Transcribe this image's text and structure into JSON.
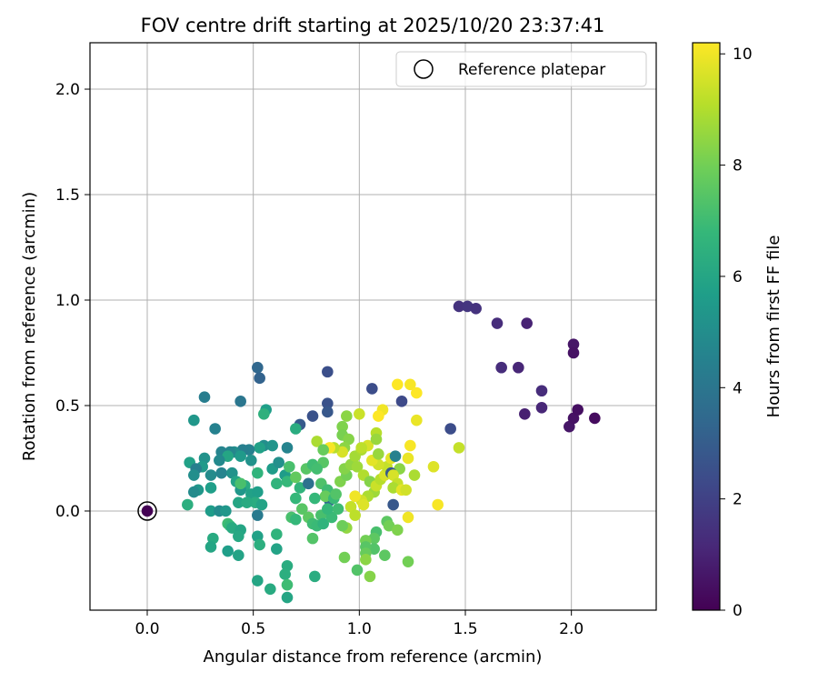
{
  "chart_data": {
    "type": "scatter",
    "title": "FOV centre drift starting at 2025/10/20 23:37:41",
    "xlabel": "Angular distance from reference (arcmin)",
    "ylabel": "Rotation from reference (arcmin)",
    "xlim": [
      -0.27,
      2.4
    ],
    "ylim": [
      -0.47,
      2.22
    ],
    "xticks": [
      0.0,
      0.5,
      1.0,
      1.5,
      2.0
    ],
    "xtick_labels": [
      "0.0",
      "0.5",
      "1.0",
      "1.5",
      "2.0"
    ],
    "yticks": [
      0.0,
      0.5,
      1.0,
      1.5,
      2.0
    ],
    "ytick_labels": [
      "0.0",
      "0.5",
      "1.0",
      "1.5",
      "2.0"
    ],
    "grid": true,
    "legend": {
      "position": "top-right",
      "label": "Reference platepar"
    },
    "reference_point": {
      "x": 0.0,
      "y": 0.0
    },
    "colorbar": {
      "label": "Hours from first FF file",
      "min": 0,
      "max": 10.2,
      "ticks": [
        0,
        2,
        4,
        6,
        8,
        10
      ],
      "tick_labels": [
        "0",
        "2",
        "4",
        "6",
        "8",
        "10"
      ],
      "colormap": [
        "#440154",
        "#482878",
        "#3e4989",
        "#31688e",
        "#26828e",
        "#1f9e89",
        "#35b779",
        "#6ece58",
        "#b5de2b",
        "#fde725"
      ]
    },
    "points": [
      [
        0.0,
        0.0,
        0.0
      ],
      [
        1.47,
        0.97,
        1.5
      ],
      [
        1.51,
        0.97,
        1.6
      ],
      [
        1.55,
        0.96,
        1.5
      ],
      [
        1.65,
        0.89,
        1.3
      ],
      [
        1.79,
        0.89,
        1.0
      ],
      [
        1.67,
        0.68,
        1.3
      ],
      [
        1.75,
        0.68,
        1.1
      ],
      [
        2.01,
        0.79,
        0.6
      ],
      [
        2.01,
        0.75,
        0.5
      ],
      [
        1.86,
        0.57,
        1.3
      ],
      [
        1.86,
        0.49,
        1.1
      ],
      [
        1.78,
        0.46,
        0.9
      ],
      [
        1.99,
        0.4,
        0.6
      ],
      [
        2.01,
        0.44,
        0.5
      ],
      [
        2.03,
        0.48,
        0.4
      ],
      [
        2.11,
        0.44,
        0.3
      ],
      [
        1.43,
        0.39,
        2.4
      ],
      [
        1.06,
        0.58,
        2.4
      ],
      [
        1.2,
        0.52,
        2.3
      ],
      [
        0.85,
        0.66,
        2.5
      ],
      [
        0.85,
        0.51,
        2.6
      ],
      [
        0.85,
        0.47,
        2.8
      ],
      [
        0.78,
        0.45,
        2.6
      ],
      [
        0.72,
        0.41,
        2.9
      ],
      [
        0.52,
        0.68,
        3.4
      ],
      [
        0.53,
        0.63,
        3.2
      ],
      [
        0.44,
        0.52,
        4.0
      ],
      [
        0.27,
        0.54,
        4.3
      ],
      [
        0.32,
        0.39,
        4.5
      ],
      [
        0.22,
        0.43,
        5.4
      ],
      [
        0.56,
        0.48,
        5.7
      ],
      [
        0.55,
        0.46,
        6.5
      ],
      [
        0.55,
        0.31,
        5.0
      ],
      [
        0.59,
        0.31,
        5.3
      ],
      [
        0.53,
        0.3,
        5.8
      ],
      [
        0.66,
        0.3,
        4.6
      ],
      [
        0.48,
        0.29,
        4.5
      ],
      [
        0.45,
        0.29,
        4.4
      ],
      [
        0.41,
        0.28,
        5.0
      ],
      [
        0.39,
        0.28,
        4.7
      ],
      [
        0.35,
        0.28,
        4.6
      ],
      [
        0.38,
        0.26,
        6.0
      ],
      [
        0.44,
        0.26,
        5.5
      ],
      [
        0.49,
        0.24,
        5.2
      ],
      [
        0.34,
        0.24,
        4.8
      ],
      [
        0.27,
        0.25,
        5.2
      ],
      [
        0.2,
        0.23,
        5.8
      ],
      [
        0.26,
        0.21,
        5.5
      ],
      [
        0.23,
        0.2,
        4.4
      ],
      [
        0.22,
        0.17,
        5.0
      ],
      [
        0.3,
        0.17,
        4.9
      ],
      [
        0.35,
        0.18,
        4.6
      ],
      [
        0.4,
        0.18,
        5.2
      ],
      [
        0.42,
        0.14,
        5.9
      ],
      [
        0.46,
        0.12,
        6.2
      ],
      [
        0.44,
        0.1,
        5.4
      ],
      [
        0.49,
        0.08,
        5.8
      ],
      [
        0.52,
        0.18,
        6.6
      ],
      [
        0.59,
        0.2,
        5.6
      ],
      [
        0.62,
        0.23,
        5.1
      ],
      [
        0.65,
        0.17,
        5.6
      ],
      [
        0.61,
        0.13,
        6.6
      ],
      [
        0.66,
        0.14,
        6.8
      ],
      [
        0.52,
        0.09,
        5.7
      ],
      [
        0.51,
        0.04,
        6.3
      ],
      [
        0.54,
        0.03,
        5.9
      ],
      [
        0.43,
        0.04,
        6.0
      ],
      [
        0.47,
        0.04,
        6.2
      ],
      [
        0.44,
        0.13,
        7.2
      ],
      [
        0.3,
        0.11,
        5.7
      ],
      [
        0.24,
        0.1,
        5.4
      ],
      [
        0.22,
        0.09,
        4.9
      ],
      [
        0.19,
        0.03,
        6.4
      ],
      [
        0.3,
        0.0,
        5.6
      ],
      [
        0.34,
        0.0,
        4.9
      ],
      [
        0.37,
        0.0,
        5.4
      ],
      [
        0.52,
        -0.02,
        4.2
      ],
      [
        0.38,
        -0.06,
        7.0
      ],
      [
        0.39,
        -0.07,
        6.8
      ],
      [
        0.4,
        -0.08,
        6.2
      ],
      [
        0.44,
        -0.09,
        6.0
      ],
      [
        0.43,
        -0.12,
        6.1
      ],
      [
        0.31,
        -0.13,
        6.2
      ],
      [
        0.3,
        -0.17,
        6.0
      ],
      [
        0.38,
        -0.19,
        5.7
      ],
      [
        0.43,
        -0.21,
        5.9
      ],
      [
        0.52,
        -0.12,
        5.8
      ],
      [
        0.53,
        -0.16,
        6.4
      ],
      [
        0.61,
        -0.11,
        6.6
      ],
      [
        0.61,
        -0.18,
        5.9
      ],
      [
        0.66,
        -0.26,
        6.3
      ],
      [
        0.65,
        -0.3,
        6.4
      ],
      [
        0.66,
        -0.35,
        7.0
      ],
      [
        0.52,
        -0.33,
        6.0
      ],
      [
        0.58,
        -0.37,
        6.2
      ],
      [
        0.66,
        -0.41,
        6.0
      ],
      [
        0.79,
        -0.31,
        6.3
      ],
      [
        0.68,
        -0.03,
        7.2
      ],
      [
        0.7,
        -0.04,
        6.8
      ],
      [
        0.73,
        0.01,
        7.5
      ],
      [
        0.7,
        0.06,
        6.8
      ],
      [
        0.72,
        0.11,
        6.6
      ],
      [
        0.67,
        0.21,
        7.2
      ],
      [
        0.7,
        0.39,
        6.3
      ],
      [
        0.75,
        0.2,
        7.5
      ],
      [
        0.78,
        0.22,
        7.0
      ],
      [
        0.76,
        0.13,
        3.8
      ],
      [
        0.82,
        0.13,
        7.3
      ],
      [
        0.85,
        0.1,
        7.0
      ],
      [
        0.86,
        0.05,
        3.5
      ],
      [
        0.84,
        0.07,
        7.8
      ],
      [
        0.79,
        0.06,
        6.8
      ],
      [
        0.82,
        -0.02,
        7.2
      ],
      [
        0.76,
        -0.03,
        7.6
      ],
      [
        0.78,
        -0.06,
        7.0
      ],
      [
        0.8,
        -0.07,
        6.9
      ],
      [
        0.83,
        -0.06,
        6.6
      ],
      [
        0.78,
        -0.13,
        7.4
      ],
      [
        0.87,
        -0.03,
        6.9
      ],
      [
        0.85,
        0.01,
        6.8
      ],
      [
        0.88,
        0.06,
        6.9
      ],
      [
        0.89,
        0.08,
        7.4
      ],
      [
        0.91,
        0.14,
        8.2
      ],
      [
        0.94,
        0.17,
        8.0
      ],
      [
        0.93,
        0.2,
        8.3
      ],
      [
        0.96,
        0.22,
        8.5
      ],
      [
        0.98,
        0.26,
        8.8
      ],
      [
        1.01,
        0.29,
        8.9
      ],
      [
        1.04,
        0.31,
        9.6
      ],
      [
        1.01,
        0.3,
        9.2
      ],
      [
        0.99,
        0.21,
        8.7
      ],
      [
        1.02,
        0.17,
        9.0
      ],
      [
        1.05,
        0.14,
        8.3
      ],
      [
        1.07,
        0.09,
        8.7
      ],
      [
        1.04,
        0.07,
        8.9
      ],
      [
        1.01,
        0.05,
        9.5
      ],
      [
        0.98,
        0.07,
        10.0
      ],
      [
        0.96,
        0.02,
        9.3
      ],
      [
        1.02,
        0.03,
        9.7
      ],
      [
        1.08,
        0.12,
        9.4
      ],
      [
        1.1,
        0.15,
        9.1
      ],
      [
        1.12,
        0.17,
        9.6
      ],
      [
        1.13,
        0.21,
        9.3
      ],
      [
        1.09,
        0.22,
        9.5
      ],
      [
        1.06,
        0.24,
        9.8
      ],
      [
        1.09,
        0.27,
        8.6
      ],
      [
        1.15,
        0.25,
        9.8
      ],
      [
        1.17,
        0.26,
        4.5
      ],
      [
        1.19,
        0.2,
        8.4
      ],
      [
        1.23,
        0.25,
        9.9
      ],
      [
        1.24,
        0.31,
        10.1
      ],
      [
        1.15,
        0.18,
        2.9
      ],
      [
        1.16,
        0.17,
        9.6
      ],
      [
        1.18,
        0.13,
        9.3
      ],
      [
        1.16,
        0.11,
        8.9
      ],
      [
        1.2,
        0.1,
        9.8
      ],
      [
        1.16,
        0.03,
        2.8
      ],
      [
        1.13,
        -0.05,
        7.6
      ],
      [
        1.14,
        -0.07,
        8.0
      ],
      [
        1.18,
        -0.09,
        8.2
      ],
      [
        1.23,
        -0.03,
        10.0
      ],
      [
        1.08,
        -0.1,
        7.2
      ],
      [
        1.07,
        -0.13,
        7.6
      ],
      [
        1.07,
        -0.18,
        7.4
      ],
      [
        1.03,
        -0.14,
        8.0
      ],
      [
        1.03,
        -0.17,
        7.5
      ],
      [
        1.03,
        -0.2,
        7.8
      ],
      [
        1.03,
        -0.23,
        8.4
      ],
      [
        0.99,
        -0.28,
        7.4
      ],
      [
        1.05,
        -0.31,
        8.3
      ],
      [
        1.12,
        -0.21,
        7.6
      ],
      [
        1.23,
        -0.24,
        8.0
      ],
      [
        0.93,
        -0.22,
        8.0
      ],
      [
        0.94,
        -0.08,
        8.5
      ],
      [
        0.98,
        -0.02,
        9.2
      ],
      [
        0.92,
        -0.07,
        7.9
      ],
      [
        0.9,
        0.01,
        7.0
      ],
      [
        1.0,
        0.46,
        9.4
      ],
      [
        1.08,
        0.37,
        9.1
      ],
      [
        1.08,
        0.34,
        8.6
      ],
      [
        1.11,
        0.48,
        10.0
      ],
      [
        1.09,
        0.45,
        10.2
      ],
      [
        1.18,
        0.6,
        10.2
      ],
      [
        1.24,
        0.6,
        10.1
      ],
      [
        1.27,
        0.56,
        10.2
      ],
      [
        1.27,
        0.43,
        9.9
      ],
      [
        1.26,
        0.17,
        8.9
      ],
      [
        1.22,
        0.1,
        9.5
      ],
      [
        1.35,
        0.21,
        9.7
      ],
      [
        1.37,
        0.03,
        10.1
      ],
      [
        1.47,
        0.3,
        9.3
      ],
      [
        0.94,
        0.45,
        8.4
      ],
      [
        0.92,
        0.4,
        8.2
      ],
      [
        0.92,
        0.36,
        8.1
      ],
      [
        0.95,
        0.34,
        8.3
      ],
      [
        0.93,
        0.3,
        8.4
      ],
      [
        0.92,
        0.28,
        9.6
      ],
      [
        0.88,
        0.3,
        9.1
      ],
      [
        0.86,
        0.3,
        10.1
      ],
      [
        0.8,
        0.33,
        8.9
      ],
      [
        0.83,
        0.29,
        7.8
      ],
      [
        0.83,
        0.23,
        7.5
      ],
      [
        0.8,
        0.2,
        7.1
      ],
      [
        0.7,
        0.16,
        7.7
      ]
    ]
  }
}
